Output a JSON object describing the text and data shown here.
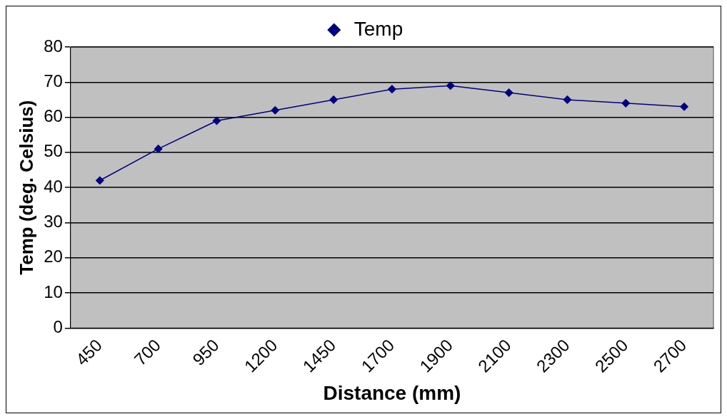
{
  "chart_data": {
    "type": "line",
    "xlabel": "Distance (mm)",
    "ylabel": "Temp (deg. Celsius)",
    "categories": [
      "450",
      "700",
      "950",
      "1200",
      "1450",
      "1700",
      "1900",
      "2100",
      "2300",
      "2500",
      "2700"
    ],
    "series": [
      {
        "name": "Temp",
        "color": "#000080",
        "values": [
          42,
          51,
          59,
          62,
          65,
          68,
          69,
          67,
          65,
          64,
          63
        ]
      }
    ],
    "ylim": [
      0,
      80
    ],
    "yticks": [
      0,
      10,
      20,
      30,
      40,
      50,
      60,
      70,
      80
    ],
    "grid": "y",
    "legend": "top",
    "marker": "diamond",
    "line_style": "solid"
  }
}
